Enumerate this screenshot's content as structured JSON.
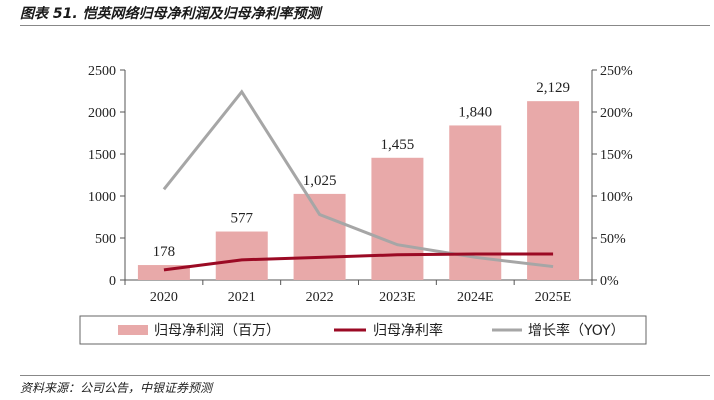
{
  "header": {
    "title": "图表 51. 恺英网络归母净利润及归母净利率预测"
  },
  "footer": {
    "source": "资料来源：公司公告，中银证券预测"
  },
  "chart_data": {
    "type": "bar",
    "categories": [
      "2020",
      "2021",
      "2022",
      "2023E",
      "2024E",
      "2025E"
    ],
    "series": [
      {
        "name": "归母净利润（百万）",
        "type": "bar",
        "axis": "left",
        "values": [
          178,
          577,
          1025,
          1455,
          1840,
          2129
        ],
        "labels": [
          "178",
          "577",
          "1,025",
          "1,455",
          "1,840",
          "2,129"
        ],
        "color": "#e8a9a9"
      },
      {
        "name": "归母净利率",
        "type": "line",
        "axis": "right",
        "values": [
          12,
          24,
          27,
          30,
          31,
          31
        ],
        "color": "#9b0a24"
      },
      {
        "name": "增长率（YOY）",
        "type": "line",
        "axis": "right",
        "values": [
          108,
          224,
          78,
          42,
          27,
          16
        ],
        "color": "#a6a6a6"
      }
    ],
    "yleft": {
      "min": 0,
      "max": 2500,
      "ticks": [
        "0",
        "500",
        "1000",
        "1500",
        "2000",
        "2500"
      ]
    },
    "yright": {
      "min": 0,
      "max": 250,
      "ticks": [
        "0%",
        "50%",
        "100%",
        "150%",
        "200%",
        "250%"
      ]
    },
    "legend_position": "bottom",
    "grid": false
  }
}
